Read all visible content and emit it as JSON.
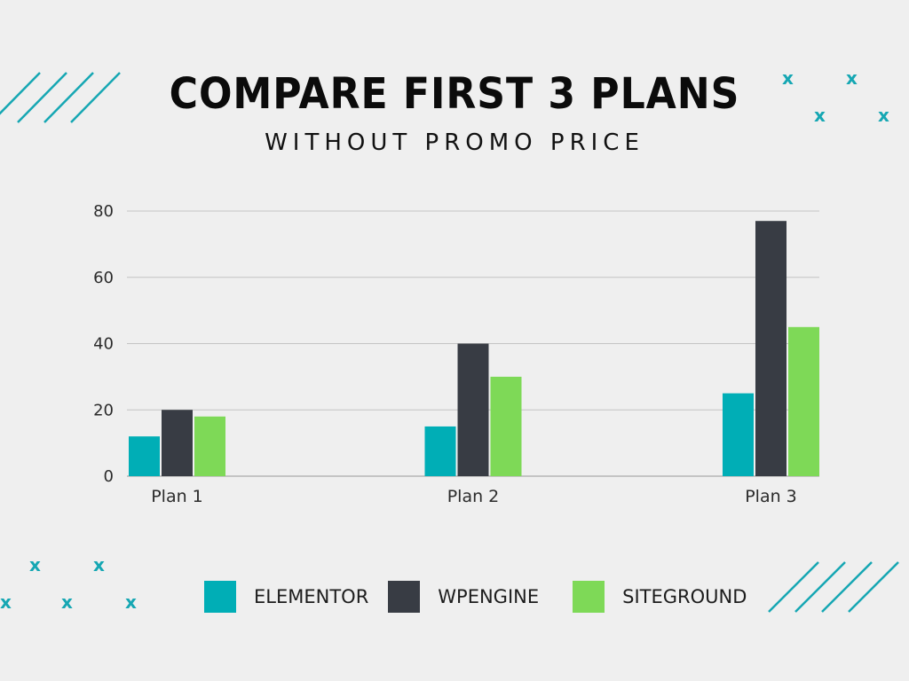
{
  "chart_data": {
    "type": "bar",
    "title": "COMPARE FIRST 3 PLANS",
    "subtitle": "WITHOUT PROMO PRICE",
    "categories": [
      "Plan 1",
      "Plan 2",
      "Plan 3"
    ],
    "series": [
      {
        "name": "ELEMENTOR",
        "color": "#00aeb6",
        "values": [
          12,
          15,
          25
        ]
      },
      {
        "name": "WPENGINE",
        "color": "#383c44",
        "values": [
          20,
          40,
          77
        ]
      },
      {
        "name": "SITEGROUND",
        "color": "#7ed957",
        "values": [
          18,
          30,
          45
        ]
      }
    ],
    "yticks": [
      0,
      20,
      40,
      60,
      80
    ],
    "ylim": [
      0,
      80
    ],
    "grid": true,
    "legend_position": "bottom"
  },
  "decor": {
    "accent_color": "#16a7b3",
    "mark_glyph": "x"
  }
}
